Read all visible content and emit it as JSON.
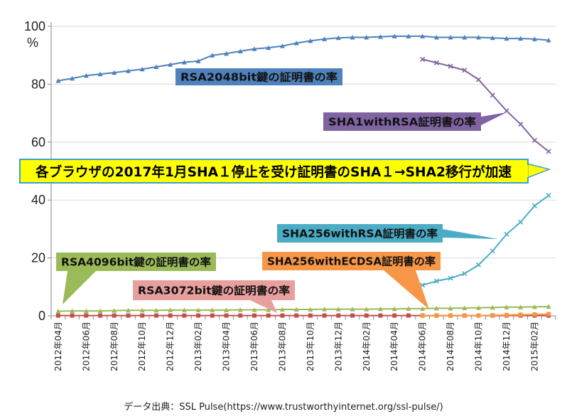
{
  "chart_data": {
    "type": "line",
    "ylabel": "%",
    "ylim": [
      0,
      100
    ],
    "yticks": [
      "0",
      "20",
      "40",
      "60",
      "80",
      "100"
    ],
    "x": [
      "2012年04月",
      "2012年05月",
      "2012年06月",
      "2012年07月",
      "2012年08月",
      "2012年09月",
      "2012年10月",
      "2012年11月",
      "2012年12月",
      "2013年01月",
      "2013年02月",
      "2013年03月",
      "2013年04月",
      "2013年05月",
      "2013年06月",
      "2013年07月",
      "2013年08月",
      "2013年09月",
      "2013年10月",
      "2013年11月",
      "2013年12月",
      "2014年01月",
      "2014年02月",
      "2014年03月",
      "2014年04月",
      "2014年05月",
      "2014年06月",
      "2014年07月",
      "2014年08月",
      "2014年09月",
      "2014年10月",
      "2014年11月",
      "2014年12月",
      "2015年01月",
      "2015年02月",
      "2015年03月"
    ],
    "xtick_labels": [
      "2012年04月",
      "2012年06月",
      "2012年08月",
      "2012年10月",
      "2012年12月",
      "2013年02月",
      "2013年04月",
      "2013年06月",
      "2013年08月",
      "2013年10月",
      "2013年12月",
      "2014年02月",
      "2014年04月",
      "2014年06月",
      "2014年08月",
      "2014年10月",
      "2014年12月",
      "2015年02月"
    ],
    "series": [
      {
        "name": "RSA2048bit鍵の証明書の率",
        "color": "#4f81bd",
        "marker": "triangle",
        "values": [
          81.2,
          82,
          83,
          83.5,
          84,
          84.6,
          85.2,
          86,
          86.8,
          87.6,
          88,
          90,
          90.6,
          91.4,
          92.2,
          92.6,
          93.2,
          94.2,
          95,
          95.6,
          96,
          96.2,
          96.2,
          96.4,
          96.6,
          96.6,
          96.6,
          96.2,
          96.2,
          96.2,
          96.2,
          96,
          95.8,
          95.8,
          95.6,
          95.2
        ]
      },
      {
        "name": "SHA1withRSA証明書の率",
        "color": "#8064a2",
        "marker": "x",
        "values": [
          null,
          null,
          null,
          null,
          null,
          null,
          null,
          null,
          null,
          null,
          null,
          null,
          null,
          null,
          null,
          null,
          null,
          null,
          null,
          null,
          null,
          null,
          null,
          null,
          null,
          null,
          88.6,
          87.4,
          86.2,
          84.8,
          81.6,
          76.2,
          70.8,
          66.2,
          60.6,
          56.8
        ]
      },
      {
        "name": "SHA256withRSA証明書の率",
        "color": "#4bacc6",
        "marker": "x",
        "values": [
          null,
          null,
          null,
          null,
          null,
          null,
          null,
          null,
          null,
          null,
          null,
          null,
          null,
          null,
          null,
          null,
          null,
          null,
          null,
          null,
          null,
          null,
          null,
          null,
          null,
          null,
          10.6,
          12,
          13,
          14.6,
          17.6,
          22.4,
          28.2,
          32.4,
          38,
          41.6
        ]
      },
      {
        "name": "RSA4096bit鍵の証明書の率",
        "color": "#9bbb59",
        "marker": "triangle",
        "values": [
          1.6,
          1.7,
          1.7,
          1.7,
          1.8,
          1.9,
          1.9,
          1.9,
          2.0,
          2.0,
          2.0,
          2.0,
          2.0,
          2.1,
          2.1,
          2.1,
          2.2,
          2.2,
          2.2,
          2.3,
          2.3,
          2.3,
          2.3,
          2.4,
          2.4,
          2.5,
          2.5,
          2.6,
          2.6,
          2.7,
          2.8,
          2.9,
          3.0,
          3.0,
          3.1,
          3.2
        ]
      },
      {
        "name": "RSA3072bit鍵の証明書の率",
        "color": "#c0504d",
        "marker": "square",
        "values": [
          0.1,
          0.1,
          0.1,
          0.1,
          0.1,
          0.1,
          0.1,
          0.1,
          0.1,
          0.1,
          0.1,
          0.1,
          0.1,
          0.1,
          0.1,
          0.1,
          0.1,
          0.1,
          0.1,
          0.1,
          0.1,
          0.1,
          0.1,
          0.1,
          0.1,
          0.1,
          0.1,
          0.1,
          0.1,
          0.1,
          0.1,
          0.1,
          0.1,
          0.1,
          0.1,
          0.1
        ]
      },
      {
        "name": "SHA256withECDSA証明書の率",
        "color": "#f79646",
        "marker": "square",
        "values": [
          null,
          null,
          null,
          null,
          null,
          null,
          null,
          null,
          null,
          null,
          null,
          null,
          null,
          null,
          null,
          null,
          null,
          null,
          null,
          null,
          null,
          null,
          null,
          null,
          null,
          null,
          0.05,
          0.05,
          0.05,
          0.05,
          0.1,
          0.2,
          0.3,
          0.4,
          0.5,
          0.6
        ]
      }
    ],
    "annotation": "各ブラウザの2017年1月SHA１停止を受け証明書のSHA１→SHA2移行が加速",
    "grid": "horizontal"
  },
  "source_text": "データ出典：SSL Pulse(https://www.trustworthyinternet.org/ssl-pulse/)"
}
